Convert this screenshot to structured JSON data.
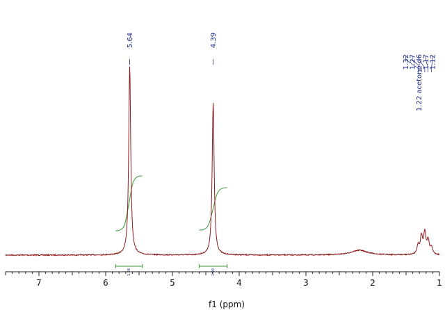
{
  "chart_data": {
    "type": "line",
    "title": "",
    "xlabel": "f1 (ppm)",
    "ylabel": "",
    "xlim": [
      7.5,
      1.0
    ],
    "x_reversed": true,
    "grid": false,
    "ticks": [
      "7",
      "6",
      "5",
      "4",
      "3",
      "2",
      "1"
    ],
    "tick_values": [
      7,
      6,
      5,
      4,
      3,
      2,
      1
    ],
    "peak_labels": [
      {
        "text": "5.64",
        "ppm": 5.64
      },
      {
        "text": "4.39",
        "ppm": 4.39
      }
    ],
    "multiplet_labels": [
      {
        "text": "1.32",
        "ppm": 1.32
      },
      {
        "text": "1.27",
        "ppm": 1.27
      },
      {
        "text": "1.22 acetone-d6",
        "ppm": 1.22
      },
      {
        "text": "1.17",
        "ppm": 1.17
      },
      {
        "text": "1.12",
        "ppm": 1.12
      }
    ],
    "integrals": [
      {
        "value": "1.28",
        "from": 5.85,
        "to": 5.45
      },
      {
        "value": "1.00",
        "from": 4.6,
        "to": 4.18
      }
    ],
    "series": [
      {
        "color": "#8b1a1a",
        "peaks": [
          {
            "ppm": 5.64,
            "height": 0.98,
            "width": 0.018
          },
          {
            "ppm": 4.39,
            "height": 0.79,
            "width": 0.018
          },
          {
            "ppm": 2.2,
            "height": 0.025,
            "width": 0.15
          },
          {
            "ppm": 1.32,
            "height": 0.045,
            "width": 0.02
          },
          {
            "ppm": 1.27,
            "height": 0.09,
            "width": 0.02
          },
          {
            "ppm": 1.22,
            "height": 0.11,
            "width": 0.02
          },
          {
            "ppm": 1.17,
            "height": 0.07,
            "width": 0.02
          },
          {
            "ppm": 1.12,
            "height": 0.035,
            "width": 0.02
          }
        ]
      }
    ],
    "integral_color": "#3a9a3a"
  }
}
